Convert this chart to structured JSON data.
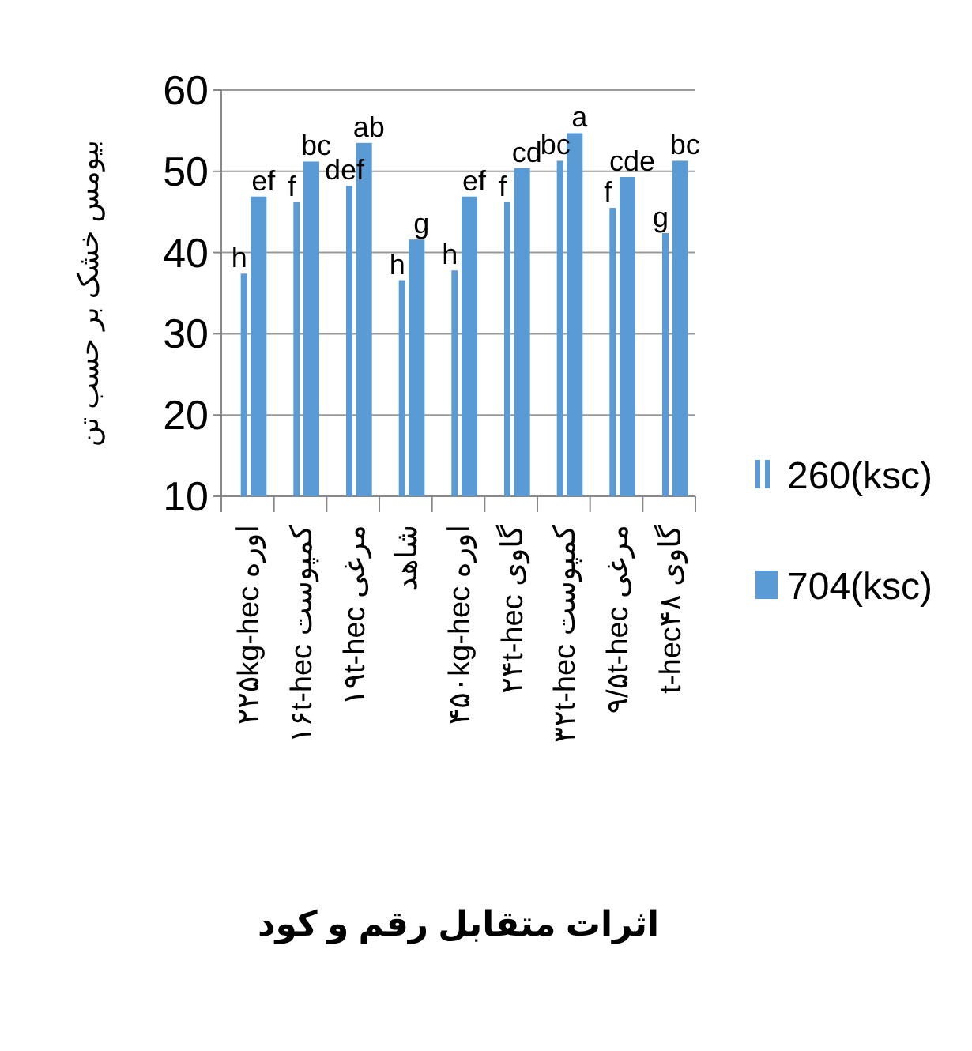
{
  "chart_data": {
    "type": "bar",
    "categories": [
      "اوره ۲۲۵kg-hec",
      "کمپوست ۱۶t-hec",
      "مرغی ۱۹t-hec",
      "شاهد",
      "اوره ۴۵۰kg-hec",
      "گاوی ۲۴t-hec",
      "کمپوست ۳۲t-hec",
      "مرغی ۹/۵t-hec",
      "گاوی t-hec۴۸"
    ],
    "series": [
      {
        "name": "260(ksc)",
        "color": "#5b9bd5",
        "values": [
          37.4,
          46.2,
          48.2,
          36.6,
          37.8,
          46.2,
          51.3,
          45.5,
          42.4
        ]
      },
      {
        "name": "704(ksc)",
        "color": "#5b9bd5",
        "values": [
          46.9,
          51.2,
          53.5,
          41.6,
          46.9,
          50.4,
          54.7,
          49.3,
          51.3
        ]
      }
    ],
    "ylim": [
      10,
      60
    ],
    "yticks": [
      10,
      20,
      30,
      40,
      50,
      60
    ],
    "ylabel": "بیومس خشک بر حسب تن",
    "xlabel": "اثرات متقابل رقم و کود",
    "grid": "y",
    "legend": "right",
    "annotations": [
      {
        "text": "h",
        "x": "اوره ۲۲۵kg-hec",
        "y": 37.4
      },
      {
        "text": "ef",
        "x": "اوره ۲۲۵kg-hec",
        "y": 46.9
      },
      {
        "text": "f",
        "x": "کمپوست ۱۶t-hec",
        "y": 46.2
      },
      {
        "text": "bc",
        "x": "کمپوست ۱۶t-hec",
        "y": 51.2
      },
      {
        "text": "def",
        "x": "مرغی ۱۹t-hec",
        "y": 48.2
      },
      {
        "text": "ab",
        "x": "مرغی ۱۹t-hec",
        "y": 53.5
      },
      {
        "text": "h",
        "x": "شاهد",
        "y": 36.6
      },
      {
        "text": "g",
        "x": "شاهد",
        "y": 41.6
      },
      {
        "text": "h",
        "x": "اوره ۴۵۰kg-hec",
        "y": 37.8
      },
      {
        "text": "ef",
        "x": "اوره ۴۵۰kg-hec",
        "y": 46.9
      },
      {
        "text": "f",
        "x": "گاوی ۲۴t-hec",
        "y": 46.2
      },
      {
        "text": "cd",
        "x": "گاوی ۲۴t-hec",
        "y": 50.4
      },
      {
        "text": "bc",
        "x": "کمپوست ۳۲t-hec",
        "y": 51.3
      },
      {
        "text": "a",
        "x": "کمپوست ۳۲t-hec",
        "y": 54.7
      },
      {
        "text": "f",
        "x": "مرغی ۹/۵t-hec",
        "y": 45.5
      },
      {
        "text": "cde",
        "x": "مرغی ۹/۵t-hec",
        "y": 49.3
      },
      {
        "text": "g",
        "x": "گاوی t-hec۴۸",
        "y": 42.4
      },
      {
        "text": "bc",
        "x": "گاوی t-hec۴۸",
        "y": 51.3
      }
    ]
  }
}
